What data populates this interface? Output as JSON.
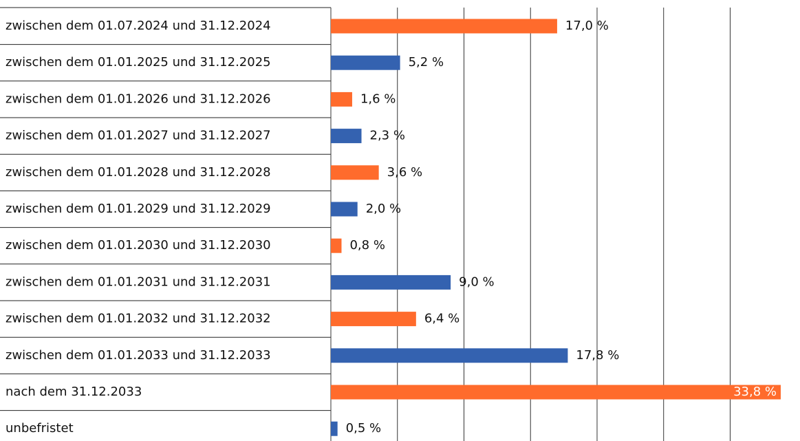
{
  "chart_data": {
    "type": "bar",
    "orientation": "horizontal",
    "categories": [
      "zwischen dem 01.07.2024 und 31.12.2024",
      "zwischen dem 01.01.2025 und 31.12.2025",
      "zwischen dem 01.01.2026 und 31.12.2026",
      "zwischen dem 01.01.2027 und 31.12.2027",
      "zwischen dem 01.01.2028 und 31.12.2028",
      "zwischen dem 01.01.2029 und 31.12.2029",
      "zwischen dem 01.01.2030 und 31.12.2030",
      "zwischen dem 01.01.2031 und 31.12.2031",
      "zwischen dem 01.01.2032 und 31.12.2032",
      "zwischen dem 01.01.2033 und 31.12.2033",
      "nach dem 31.12.2033",
      "unbefristet"
    ],
    "values": [
      17.0,
      5.2,
      1.6,
      2.3,
      3.6,
      2.0,
      0.8,
      9.0,
      6.4,
      17.8,
      33.8,
      0.5
    ],
    "value_labels": [
      "17,0 %",
      "5,2 %",
      "1,6 %",
      "2,3 %",
      "3,6 %",
      "2,0 %",
      "0,8 %",
      "9,0 %",
      "6,4 %",
      "17,8 %",
      "33,8 %",
      "0,5 %"
    ],
    "colors": [
      "#ff6b2c",
      "#3462b0",
      "#ff6b2c",
      "#3462b0",
      "#ff6b2c",
      "#3462b0",
      "#ff6b2c",
      "#3462b0",
      "#ff6b2c",
      "#3462b0",
      "#ff6b2c",
      "#3462b0"
    ],
    "xlim": [
      0,
      35
    ],
    "xticks": [
      0,
      5,
      10,
      15,
      20,
      25,
      30
    ],
    "grid": true
  }
}
